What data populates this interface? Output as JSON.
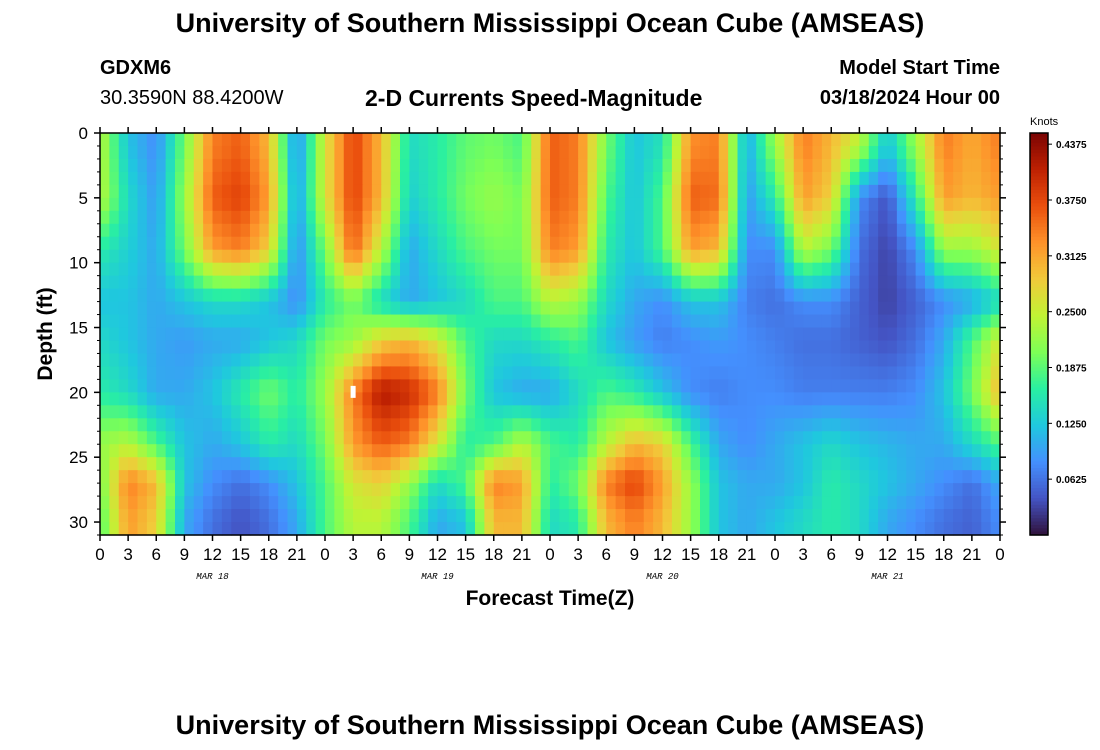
{
  "header": {
    "title": "University of Southern Mississippi Ocean Cube (AMSEAS)",
    "station": "GDXM6",
    "coords": "30.3590N  88.4200W",
    "subtitle": "2-D Currents Speed-Magnitude",
    "start_label": "Model Start Time",
    "start_value": "03/18/2024 Hour 00"
  },
  "footer": {
    "title": "University of Southern Mississippi Ocean Cube (AMSEAS)"
  },
  "chart_data": {
    "type": "heatmap",
    "title": "2-D Currents Speed-Magnitude",
    "xlabel": "Forecast Time(Z)",
    "ylabel": "Depth (ft)",
    "x_ticks": [
      "0",
      "3",
      "6",
      "9",
      "12",
      "15",
      "18",
      "21",
      "0",
      "3",
      "6",
      "9",
      "12",
      "15",
      "18",
      "21",
      "0",
      "3",
      "6",
      "9",
      "12",
      "15",
      "18",
      "21",
      "0",
      "3",
      "6",
      "9",
      "12",
      "15",
      "18",
      "21",
      "0"
    ],
    "day_labels": [
      "MAR 18",
      "MAR 19",
      "MAR 20",
      "MAR 21"
    ],
    "y_ticks": [
      0,
      5,
      10,
      15,
      20,
      25,
      30
    ],
    "ylim": [
      0,
      31
    ],
    "xlim_hours": [
      0,
      96
    ],
    "colorbar": {
      "label": "Knots",
      "ticks": [
        "0.4375",
        "0.3750",
        "0.3125",
        "0.2500",
        "0.1875",
        "0.1250",
        "0.0625"
      ],
      "range": [
        0,
        0.45
      ]
    },
    "colors": [
      "#30123b",
      "#4454c4",
      "#4490fe",
      "#1fc8de",
      "#29efa2",
      "#7dff56",
      "#c1f334",
      "#f1ca3a",
      "#fe922a",
      "#ea4f0d",
      "#be2102",
      "#7a0403"
    ],
    "depths_ft": [
      1,
      5,
      9,
      13,
      16,
      20,
      24,
      27,
      30
    ],
    "hours": [
      0,
      3,
      6,
      9,
      12,
      15,
      18,
      21,
      24,
      27,
      30,
      33,
      36,
      39,
      42,
      45,
      48,
      51,
      54,
      57,
      60,
      63,
      66,
      69,
      72,
      75,
      78,
      81,
      84,
      87,
      90,
      93,
      96
    ],
    "values_knots": [
      [
        0.24,
        0.12,
        0.08,
        0.2,
        0.34,
        0.36,
        0.3,
        0.08,
        0.26,
        0.38,
        0.3,
        0.14,
        0.16,
        0.19,
        0.2,
        0.18,
        0.36,
        0.34,
        0.2,
        0.12,
        0.15,
        0.33,
        0.34,
        0.1,
        0.22,
        0.34,
        0.3,
        0.24,
        0.12,
        0.22,
        0.34,
        0.31,
        0.34
      ],
      [
        0.24,
        0.14,
        0.09,
        0.22,
        0.36,
        0.38,
        0.32,
        0.09,
        0.26,
        0.38,
        0.3,
        0.13,
        0.16,
        0.2,
        0.22,
        0.2,
        0.36,
        0.34,
        0.18,
        0.12,
        0.18,
        0.36,
        0.35,
        0.09,
        0.16,
        0.32,
        0.28,
        0.08,
        0.04,
        0.16,
        0.32,
        0.3,
        0.32
      ],
      [
        0.16,
        0.13,
        0.1,
        0.2,
        0.32,
        0.34,
        0.28,
        0.08,
        0.2,
        0.36,
        0.24,
        0.1,
        0.14,
        0.18,
        0.2,
        0.2,
        0.34,
        0.32,
        0.16,
        0.12,
        0.18,
        0.32,
        0.3,
        0.08,
        0.08,
        0.24,
        0.2,
        0.06,
        0.03,
        0.08,
        0.22,
        0.22,
        0.26
      ],
      [
        0.12,
        0.12,
        0.1,
        0.12,
        0.14,
        0.14,
        0.12,
        0.08,
        0.16,
        0.2,
        0.14,
        0.1,
        0.12,
        0.14,
        0.18,
        0.18,
        0.24,
        0.22,
        0.14,
        0.1,
        0.08,
        0.12,
        0.12,
        0.07,
        0.06,
        0.08,
        0.08,
        0.05,
        0.03,
        0.05,
        0.08,
        0.1,
        0.14
      ],
      [
        0.14,
        0.12,
        0.1,
        0.09,
        0.1,
        0.1,
        0.12,
        0.14,
        0.2,
        0.22,
        0.28,
        0.3,
        0.26,
        0.18,
        0.14,
        0.14,
        0.16,
        0.18,
        0.12,
        0.09,
        0.07,
        0.08,
        0.09,
        0.08,
        0.07,
        0.06,
        0.06,
        0.05,
        0.04,
        0.06,
        0.1,
        0.18,
        0.26
      ],
      [
        0.16,
        0.14,
        0.1,
        0.1,
        0.12,
        0.16,
        0.2,
        0.16,
        0.22,
        0.34,
        0.42,
        0.4,
        0.34,
        0.2,
        0.12,
        0.1,
        0.1,
        0.14,
        0.18,
        0.16,
        0.12,
        0.08,
        0.07,
        0.08,
        0.08,
        0.07,
        0.07,
        0.07,
        0.07,
        0.08,
        0.12,
        0.2,
        0.3
      ],
      [
        0.22,
        0.24,
        0.18,
        0.12,
        0.1,
        0.12,
        0.16,
        0.14,
        0.2,
        0.32,
        0.36,
        0.34,
        0.26,
        0.16,
        0.18,
        0.24,
        0.18,
        0.16,
        0.24,
        0.3,
        0.28,
        0.18,
        0.1,
        0.08,
        0.1,
        0.12,
        0.14,
        0.12,
        0.11,
        0.1,
        0.1,
        0.14,
        0.18
      ],
      [
        0.2,
        0.34,
        0.3,
        0.12,
        0.08,
        0.06,
        0.08,
        0.12,
        0.18,
        0.26,
        0.28,
        0.22,
        0.14,
        0.18,
        0.34,
        0.32,
        0.16,
        0.2,
        0.34,
        0.38,
        0.32,
        0.22,
        0.12,
        0.1,
        0.1,
        0.12,
        0.16,
        0.14,
        0.12,
        0.1,
        0.08,
        0.06,
        0.1
      ],
      [
        0.18,
        0.32,
        0.28,
        0.1,
        0.06,
        0.04,
        0.06,
        0.1,
        0.18,
        0.24,
        0.24,
        0.18,
        0.1,
        0.12,
        0.3,
        0.3,
        0.14,
        0.16,
        0.3,
        0.34,
        0.3,
        0.22,
        0.12,
        0.1,
        0.12,
        0.14,
        0.16,
        0.14,
        0.1,
        0.08,
        0.06,
        0.05,
        0.08
      ]
    ]
  }
}
